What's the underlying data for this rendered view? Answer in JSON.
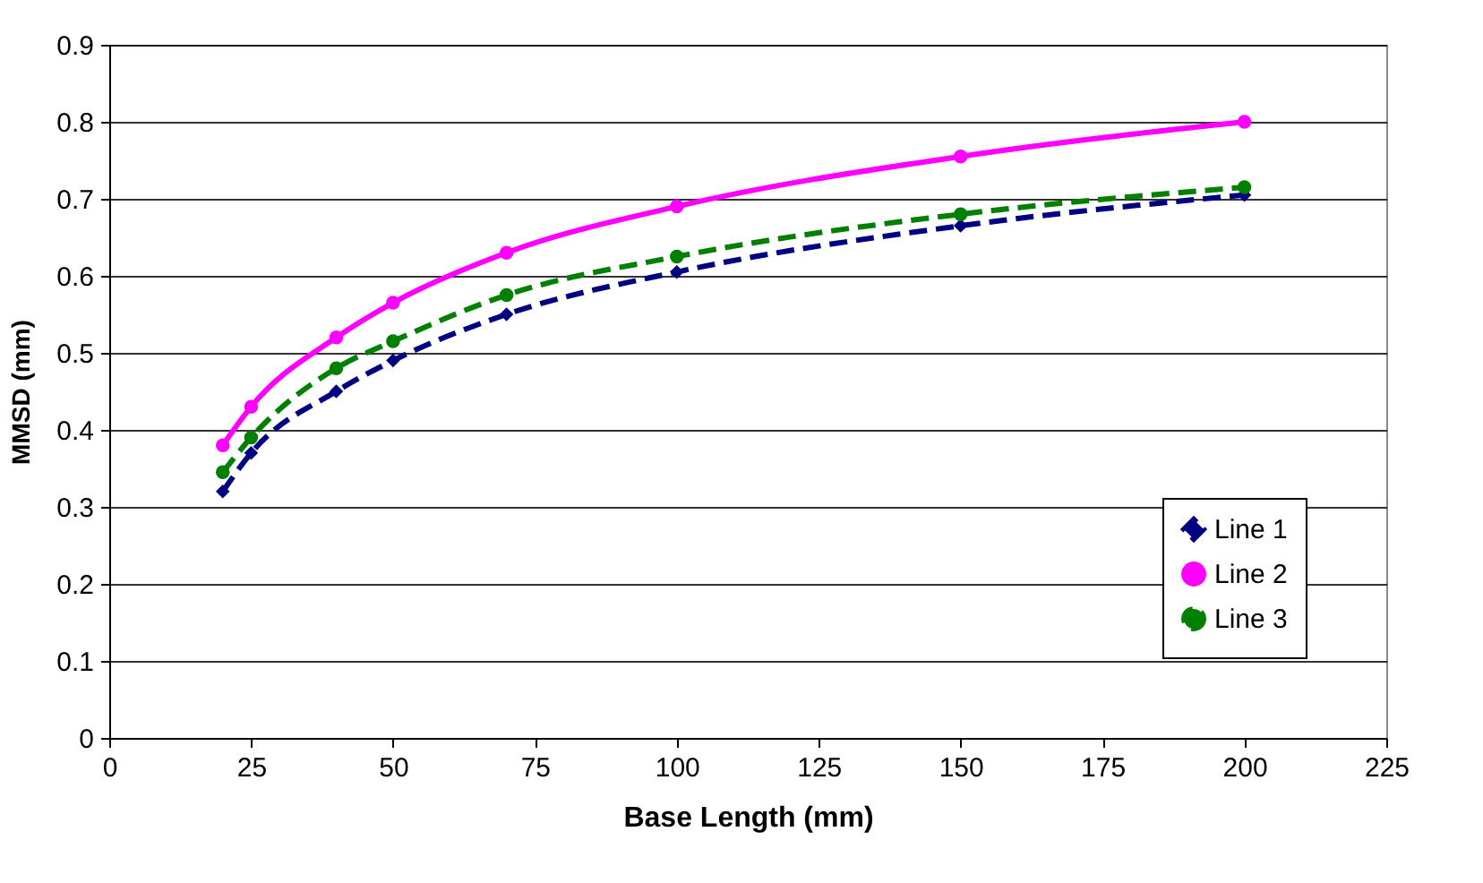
{
  "chart_data": {
    "type": "line",
    "xlabel": "Base Length (mm)",
    "ylabel": "MMSD (mm)",
    "x": [
      20,
      25,
      40,
      50,
      70,
      100,
      150,
      200
    ],
    "series": [
      {
        "name": "Line 1",
        "color": "#000080",
        "marker": "diamond",
        "line_style": "dashed",
        "values": [
          0.32,
          0.37,
          0.45,
          0.49,
          0.55,
          0.605,
          0.665,
          0.705
        ]
      },
      {
        "name": "Line 2",
        "color": "#ff00ff",
        "marker": "circle",
        "line_style": "solid",
        "values": [
          0.38,
          0.43,
          0.52,
          0.565,
          0.63,
          0.69,
          0.755,
          0.8
        ]
      },
      {
        "name": "Line 3",
        "color": "#008000",
        "marker": "circle",
        "line_style": "dashed",
        "values": [
          0.345,
          0.39,
          0.48,
          0.515,
          0.575,
          0.625,
          0.68,
          0.715
        ]
      }
    ],
    "xlim": [
      0,
      225
    ],
    "xticks": [
      0,
      25,
      50,
      75,
      100,
      125,
      150,
      175,
      200,
      225
    ],
    "ylim": [
      0,
      0.9
    ],
    "yticks": [
      0,
      0.1,
      0.2,
      0.3,
      0.4,
      0.5,
      0.6,
      0.7,
      0.8,
      0.9
    ],
    "grid": "y",
    "legend": "bottom right"
  }
}
